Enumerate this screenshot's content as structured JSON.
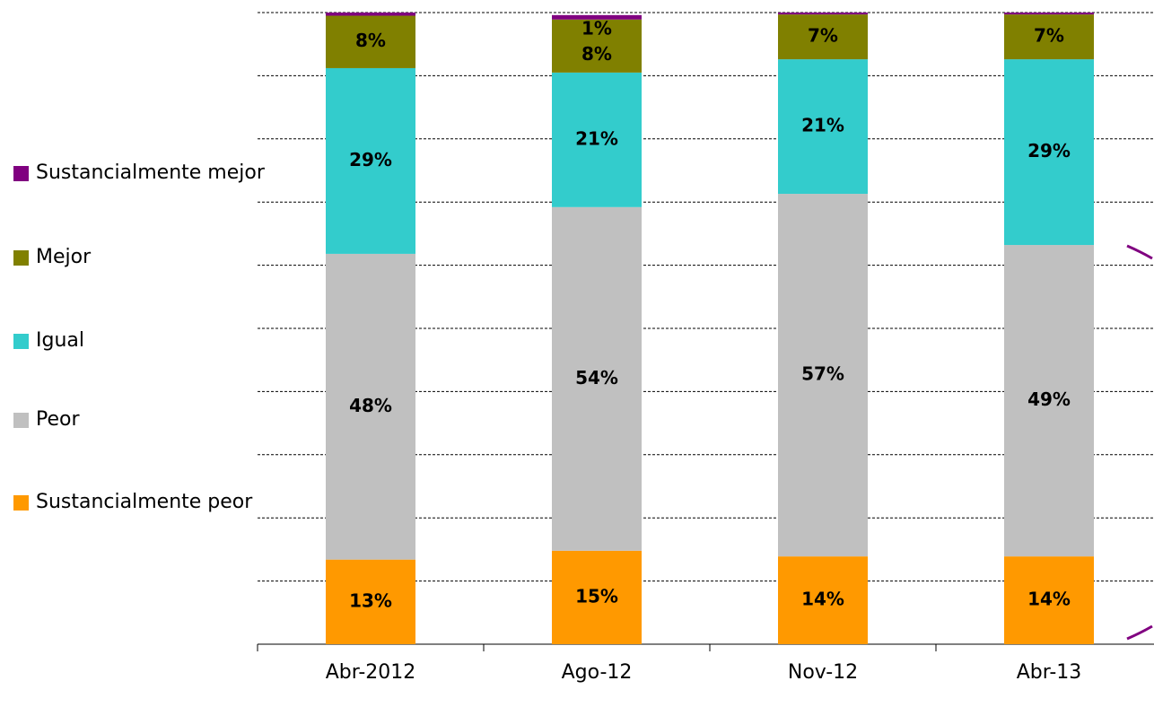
{
  "chart_data": {
    "type": "stacked_bar",
    "categories": [
      "Abr-2012",
      "Ago-12",
      "Nov-12",
      "Abr-13"
    ],
    "series": [
      {
        "name": "Sustancialmente peor",
        "color": "#ff9900",
        "values": [
          13.4,
          14.8,
          13.9,
          13.9
        ],
        "value_labels": [
          "13%",
          "15%",
          "14%",
          "14%"
        ]
      },
      {
        "name": "Peor",
        "color": "#c0c0c0",
        "values": [
          48.4,
          54.4,
          57.4,
          49.3
        ],
        "value_labels": [
          "48%",
          "54%",
          "57%",
          "49%"
        ]
      },
      {
        "name": "Igual",
        "color": "#33cccc",
        "values": [
          29.4,
          21.3,
          21.3,
          29.4
        ],
        "value_labels": [
          "29%",
          "21%",
          "21%",
          "29%"
        ]
      },
      {
        "name": "Mejor",
        "color": "#808000",
        "values": [
          8.3,
          8.4,
          7.1,
          7.1
        ],
        "value_labels": [
          "8%",
          "8%",
          "7%",
          "7%"
        ]
      },
      {
        "name": "Sustancialmente mejor",
        "color": "#800080",
        "values": [
          0.5,
          0.7,
          0.3,
          0.3
        ],
        "value_labels": [
          null,
          "1%",
          null,
          null
        ]
      }
    ],
    "ylim": [
      0,
      100
    ],
    "yticks": [
      0,
      10,
      20,
      30,
      40,
      50,
      60,
      70,
      80,
      90,
      100
    ],
    "grid": true,
    "legend": "left"
  }
}
